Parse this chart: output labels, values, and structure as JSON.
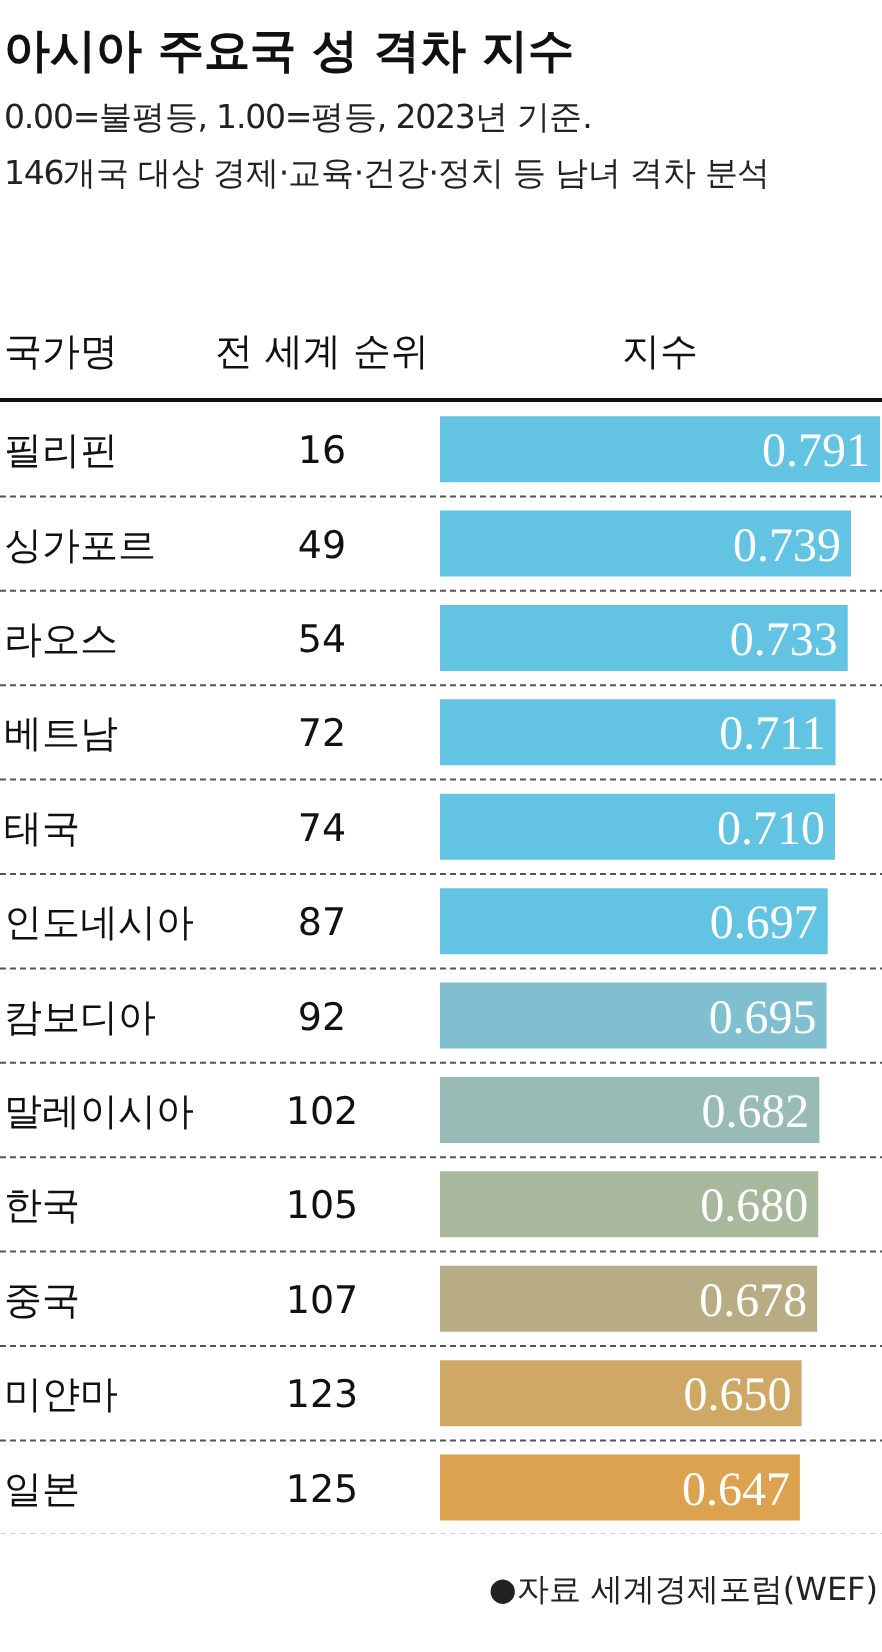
{
  "chart_data": {
    "type": "bar",
    "orientation": "horizontal",
    "title": "아시아 주요국 성 격차 지수",
    "subtitle": "0.00=불평등, 1.00=평등, 2023년 기준.\n146개국 대상 경제·교육·건강·정치 등 남녀 격차 분석",
    "ylabel": "국가명",
    "xlabel": "지수",
    "categories": [
      "필리핀",
      "싱가포르",
      "라오스",
      "베트남",
      "태국",
      "인도네시아",
      "캄보디아",
      "말레이시아",
      "한국",
      "중국",
      "미얀마",
      "일본"
    ],
    "values": [
      0.791,
      0.739,
      0.733,
      0.711,
      0.71,
      0.697,
      0.695,
      0.682,
      0.68,
      0.678,
      0.65,
      0.647
    ],
    "colors": [
      "#62c3e2",
      "#62c3e2",
      "#62c3e2",
      "#62c3e2",
      "#62c3e2",
      "#62c3e2",
      "#7fbfcf",
      "#98bbb5",
      "#a8b89d",
      "#b7ac83",
      "#cfa865",
      "#dca24f"
    ],
    "value_labels": [
      "0.791",
      "0.739",
      "0.733",
      "0.711",
      "0.710",
      "0.697",
      "0.695",
      "0.682",
      "0.680",
      "0.678",
      "0.650",
      "0.647"
    ],
    "annotations": [
      "전 세계 순위",
      "16",
      "49",
      "54",
      "72",
      "74",
      "87",
      "92",
      "102",
      "105",
      "107",
      "123",
      "125",
      "●자료 세계경제포럼(WEF)"
    ]
  }
}
